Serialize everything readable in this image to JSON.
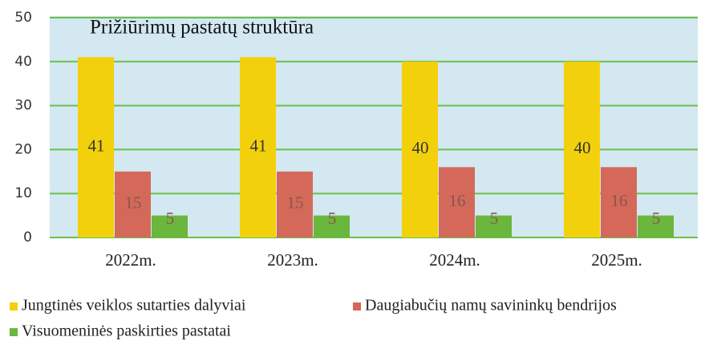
{
  "chart_data": {
    "type": "bar",
    "title": "Prižiūrimų pastatų struktūra",
    "categories": [
      "2022m.",
      "2023m.",
      "2024m.",
      "2025m."
    ],
    "series": [
      {
        "name": "Jungtinės veiklos sutarties dalyviai",
        "color": "#f3d00c",
        "values": [
          41,
          41,
          40,
          40
        ]
      },
      {
        "name": "Daugiabučių namų savininkų bendrijos",
        "color": "#d4695a",
        "values": [
          15,
          15,
          16,
          16
        ]
      },
      {
        "name": "Visuomeninės paskirties pastatai",
        "color": "#6bb63c",
        "values": [
          5,
          5,
          5,
          5
        ]
      }
    ],
    "ylim": [
      0,
      50
    ],
    "yticks": [
      0,
      10,
      20,
      30,
      40,
      50
    ],
    "grid": true
  }
}
